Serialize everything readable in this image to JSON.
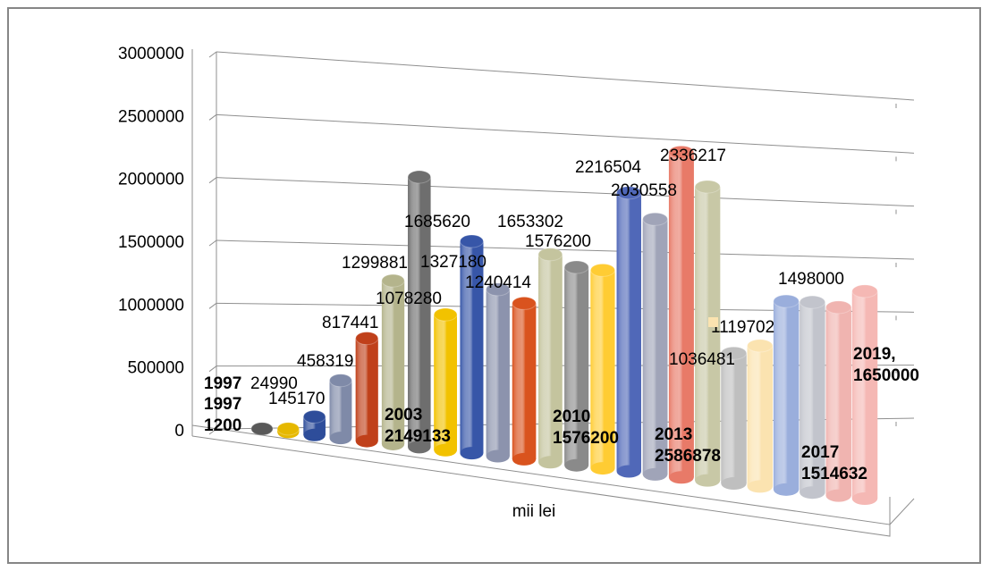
{
  "chart_data": {
    "type": "bar",
    "style": "3d-cylinder",
    "xlabel": "mii lei",
    "ylabel": "",
    "ylim": [
      0,
      3000000
    ],
    "yticks": [
      "0",
      "500000",
      "1000000",
      "1500000",
      "2000000",
      "2500000",
      "3000000"
    ],
    "grid": true,
    "values": [
      1200,
      24990,
      145170,
      458319,
      817441,
      1299881,
      2149133,
      1078280,
      1685620,
      1327180,
      1240414,
      1653302,
      1576200,
      1576200,
      2216504,
      2030558,
      2586878,
      2336217,
      1036481,
      1119702,
      1498000,
      1514632,
      1498000,
      1650000
    ],
    "colors": [
      "#595959",
      "#e6b800",
      "#2e4d9a",
      "#7f8aa8",
      "#c0401a",
      "#b4b48c",
      "#6e6e6e",
      "#f2c200",
      "#3756a8",
      "#8c93ad",
      "#d9531e",
      "#c4c49e",
      "#8a8a8a",
      "#ffcc33",
      "#5068b8",
      "#a0a4b8",
      "#e87a68",
      "#c8c8a6",
      "#bfbfbf",
      "#fbe3b0",
      "#9aaedc",
      "#c2c4cc",
      "#f0b4b0",
      "#f5b8b4"
    ],
    "value_labels": [
      {
        "text": "1997",
        "bold": true
      },
      {
        "text": "24990"
      },
      {
        "text": "145170"
      },
      {
        "text": "458319"
      },
      {
        "text": "817441"
      },
      {
        "text": "1299881"
      },
      {
        "text": "1685620"
      },
      {
        "text": "1078280"
      },
      {
        "text": "1327180"
      },
      {
        "text": "1240414"
      },
      {
        "text": "1653302"
      },
      {
        "text": "1576200"
      },
      {
        "text": "2216504"
      },
      {
        "text": "2030558"
      },
      {
        "text": "2336217"
      },
      {
        "text": "1036481"
      },
      {
        "text": "1119702"
      },
      {
        "text": "1498000"
      }
    ],
    "annotations": [
      {
        "lines": [
          "1997",
          "1200"
        ],
        "bold": true
      },
      {
        "lines": [
          "2003",
          "2149133"
        ],
        "bold": true
      },
      {
        "lines": [
          "2010",
          "1576200"
        ],
        "bold": true
      },
      {
        "lines": [
          "2013",
          "2586878"
        ],
        "bold": true
      },
      {
        "lines": [
          "2017",
          "1514632"
        ],
        "bold": true
      },
      {
        "lines": [
          "2019,",
          "1650000"
        ],
        "bold": true
      }
    ],
    "legend_marker_color": "#fbe3b0"
  }
}
